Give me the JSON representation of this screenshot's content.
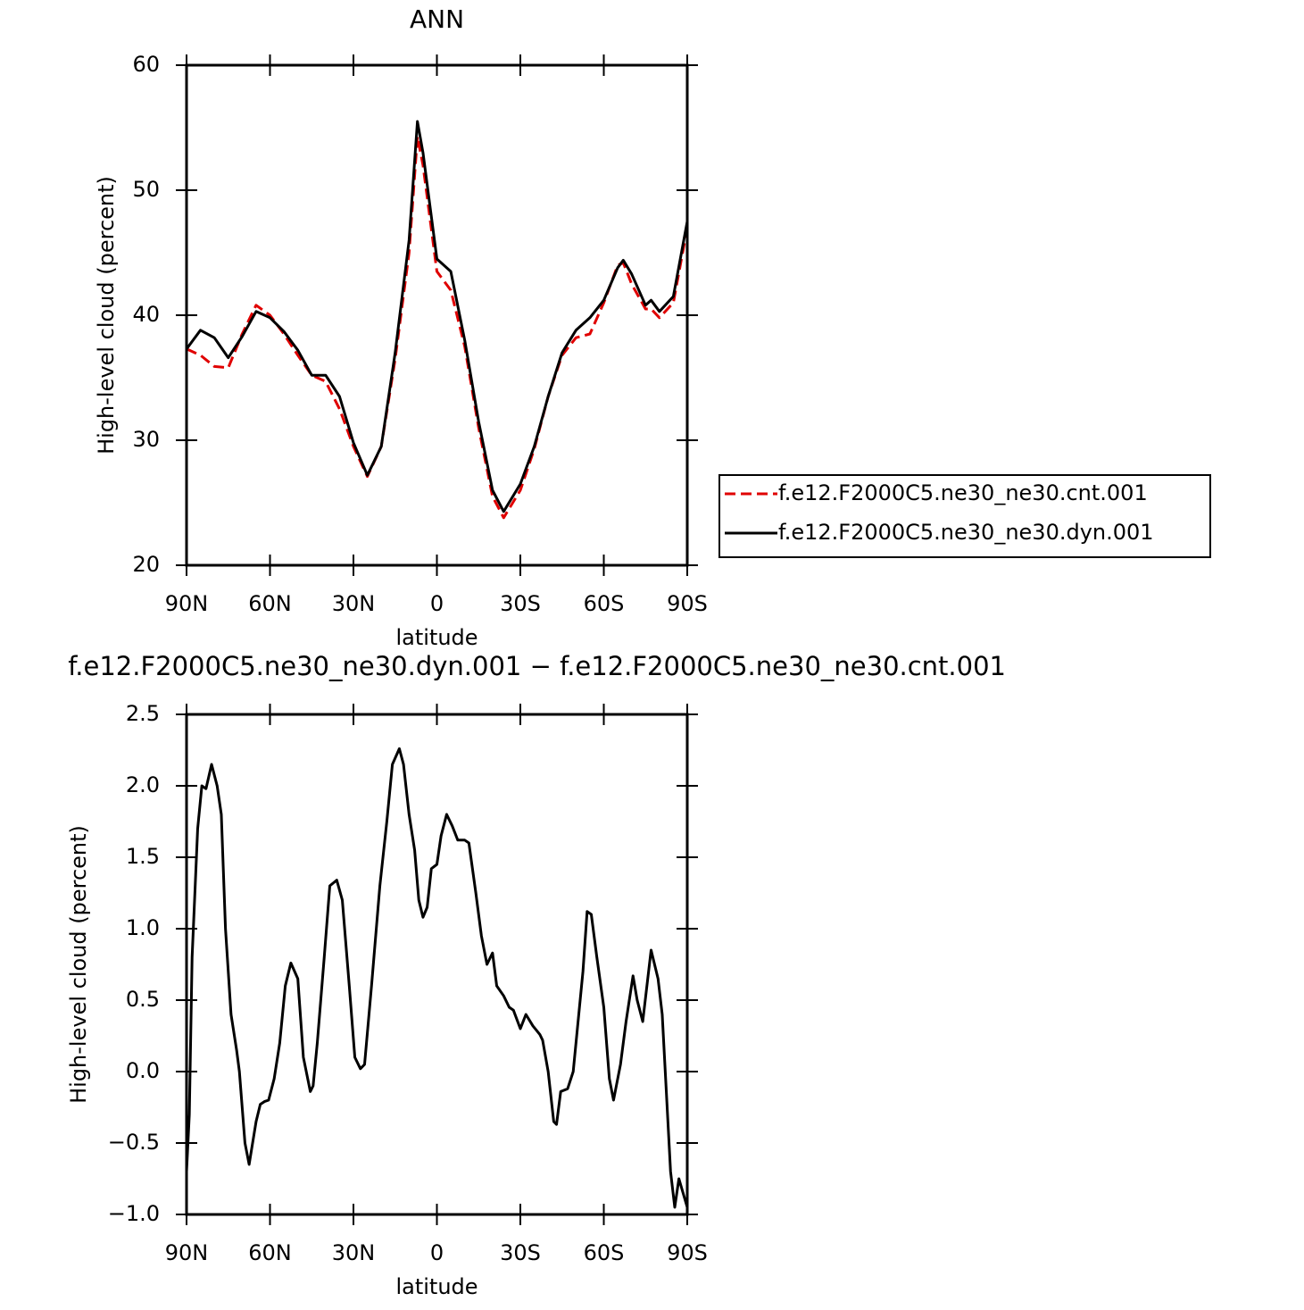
{
  "chart_data": [
    {
      "type": "line",
      "title": "ANN",
      "xlabel": "latitude",
      "ylabel": "High-level cloud (percent)",
      "x": [
        90,
        85,
        80,
        75,
        70,
        65,
        60,
        55,
        50,
        45,
        40,
        35,
        30,
        25,
        20,
        15,
        10,
        7,
        5,
        0,
        -5,
        -10,
        -15,
        -20,
        -24,
        -30,
        -35,
        -40,
        -45,
        -50,
        -55,
        -60,
        -65,
        -67,
        -70,
        -75,
        -77,
        -80,
        -85,
        -90
      ],
      "series": [
        {
          "name": "f.e12.F2000C5.ne30_ne30.cnt.001",
          "color": "#e00000",
          "dashed": true,
          "values": [
            37.3,
            36.8,
            35.9,
            35.8,
            38.5,
            40.8,
            40.0,
            38.5,
            36.8,
            35.2,
            34.7,
            32.5,
            29.5,
            27.1,
            29.5,
            36.5,
            45,
            54.3,
            52,
            43.5,
            42,
            37.5,
            31,
            25.5,
            23.8,
            26,
            29.3,
            33.5,
            36.8,
            38.2,
            38.5,
            41,
            44,
            44.2,
            42.5,
            40.5,
            40.5,
            39.8,
            41,
            47
          ]
        },
        {
          "name": "f.e12.F2000C5.ne30_ne30.dyn.001",
          "color": "#000000",
          "dashed": false,
          "values": [
            37.3,
            38.8,
            38.2,
            36.6,
            38.3,
            40.3,
            39.8,
            38.7,
            37.2,
            35.2,
            35.2,
            33.5,
            29.8,
            27.2,
            29.5,
            37,
            46,
            55.5,
            53,
            44.5,
            43.5,
            38,
            31.5,
            26,
            24.3,
            26.5,
            29.5,
            33.5,
            37,
            38.8,
            39.8,
            41.2,
            43.8,
            44.4,
            43.3,
            40.8,
            41.2,
            40.3,
            41.5,
            47.5
          ]
        }
      ],
      "xlim": [
        90,
        -90
      ],
      "xticks": [
        {
          "value": 90,
          "label": "90N"
        },
        {
          "value": 60,
          "label": "60N"
        },
        {
          "value": 30,
          "label": "30N"
        },
        0,
        {
          "value": -30,
          "label": "30S"
        },
        {
          "value": -60,
          "label": "60S"
        },
        {
          "value": -90,
          "label": "90S"
        }
      ],
      "ylim": [
        20,
        60
      ],
      "yticks": [
        20,
        30,
        40,
        50,
        60
      ],
      "legend": "right"
    },
    {
      "type": "line",
      "title": "f.e12.F2000C5.ne30_ne30.dyn.001 − f.e12.F2000C5.ne30_ne30.cnt.001",
      "xlabel": "latitude",
      "ylabel": "High-level cloud (percent)",
      "x": [
        90,
        89,
        88,
        86,
        84.5,
        83,
        81,
        79,
        77.5,
        76,
        74,
        72,
        71,
        69,
        67.5,
        65,
        63.5,
        62,
        60.5,
        58.5,
        56.5,
        54.5,
        52.5,
        50,
        48,
        45.5,
        44.5,
        43,
        40.5,
        38.5,
        36,
        34,
        31.5,
        29.5,
        27.5,
        26,
        23.5,
        20.5,
        18,
        16,
        13.5,
        12,
        10,
        8,
        6.5,
        5,
        3.5,
        2,
        0,
        -1.5,
        -3.5,
        -5.5,
        -7.5,
        -10,
        -11.5,
        -14,
        -16,
        -18,
        -20,
        -21.5,
        -24,
        -26,
        -27.5,
        -30,
        -32,
        -34.5,
        -37,
        -38,
        -40,
        -42,
        -43,
        -44.5,
        -47,
        -49,
        -50.5,
        -52.5,
        -54,
        -55.5,
        -57.5,
        -60,
        -62,
        -63.5,
        -66,
        -68,
        -70.5,
        -72,
        -74,
        -77,
        -79.5,
        -81,
        -82.5,
        -84,
        -85.5,
        -87,
        -90
      ],
      "values": [
        -0.7,
        -0.3,
        0.8,
        1.7,
        2.0,
        1.98,
        2.15,
        2.0,
        1.8,
        1.0,
        0.4,
        0.15,
        0.0,
        -0.5,
        -0.65,
        -0.35,
        -0.23,
        -0.21,
        -0.2,
        -0.05,
        0.2,
        0.6,
        0.76,
        0.65,
        0.1,
        -0.14,
        -0.1,
        0.2,
        0.8,
        1.3,
        1.34,
        1.2,
        0.6,
        0.1,
        0.02,
        0.05,
        0.6,
        1.3,
        1.75,
        2.15,
        2.26,
        2.15,
        1.8,
        1.55,
        1.2,
        1.08,
        1.15,
        1.42,
        1.45,
        1.65,
        1.8,
        1.72,
        1.62,
        1.62,
        1.6,
        1.25,
        0.95,
        0.75,
        0.83,
        0.6,
        0.53,
        0.45,
        0.43,
        0.3,
        0.4,
        0.32,
        0.26,
        0.22,
        0.0,
        -0.35,
        -0.37,
        -0.14,
        -0.12,
        0.0,
        0.3,
        0.7,
        1.12,
        1.1,
        0.8,
        0.45,
        -0.05,
        -0.2,
        0.05,
        0.35,
        0.67,
        0.5,
        0.35,
        0.85,
        0.65,
        0.4,
        -0.15,
        -0.7,
        -0.95,
        -0.75,
        -0.95
      ],
      "color": "#000000",
      "xlim": [
        90,
        -90
      ],
      "xticks": [
        {
          "value": 90,
          "label": "90N"
        },
        {
          "value": 60,
          "label": "60N"
        },
        {
          "value": 30,
          "label": "30N"
        },
        0,
        {
          "value": -30,
          "label": "30S"
        },
        {
          "value": -60,
          "label": "60S"
        },
        {
          "value": -90,
          "label": "90S"
        }
      ],
      "ylim": [
        -1,
        2.5
      ],
      "yticks": [
        {
          "value": -1,
          "label": "−1.0"
        },
        {
          "value": -0.5,
          "label": "−0.5"
        },
        {
          "value": 0,
          "label": "0.0"
        },
        0.5,
        {
          "value": 1,
          "label": "1.0"
        },
        1.5,
        {
          "value": 2,
          "label": "2.0"
        },
        2.5
      ]
    }
  ]
}
